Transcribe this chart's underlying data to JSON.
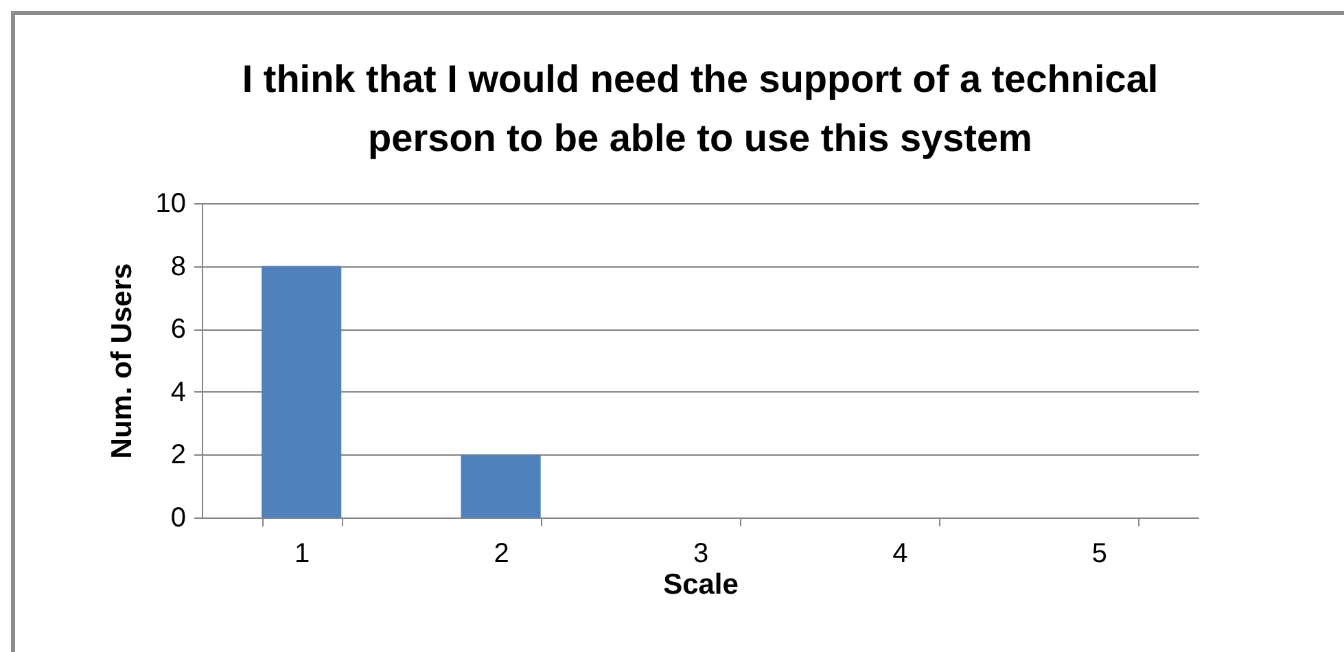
{
  "chart_data": {
    "type": "bar",
    "title": "I think that I would need the support of a technical person to be able to use this system",
    "xlabel": "Scale",
    "ylabel": "Num. of Users",
    "categories": [
      "1",
      "2",
      "3",
      "4",
      "5"
    ],
    "values": [
      8,
      2,
      0,
      0,
      0
    ],
    "color": "#4f81bd",
    "ylim": [
      0,
      10
    ],
    "yticks": [
      0,
      2,
      4,
      6,
      8,
      10
    ],
    "grid": "y"
  }
}
